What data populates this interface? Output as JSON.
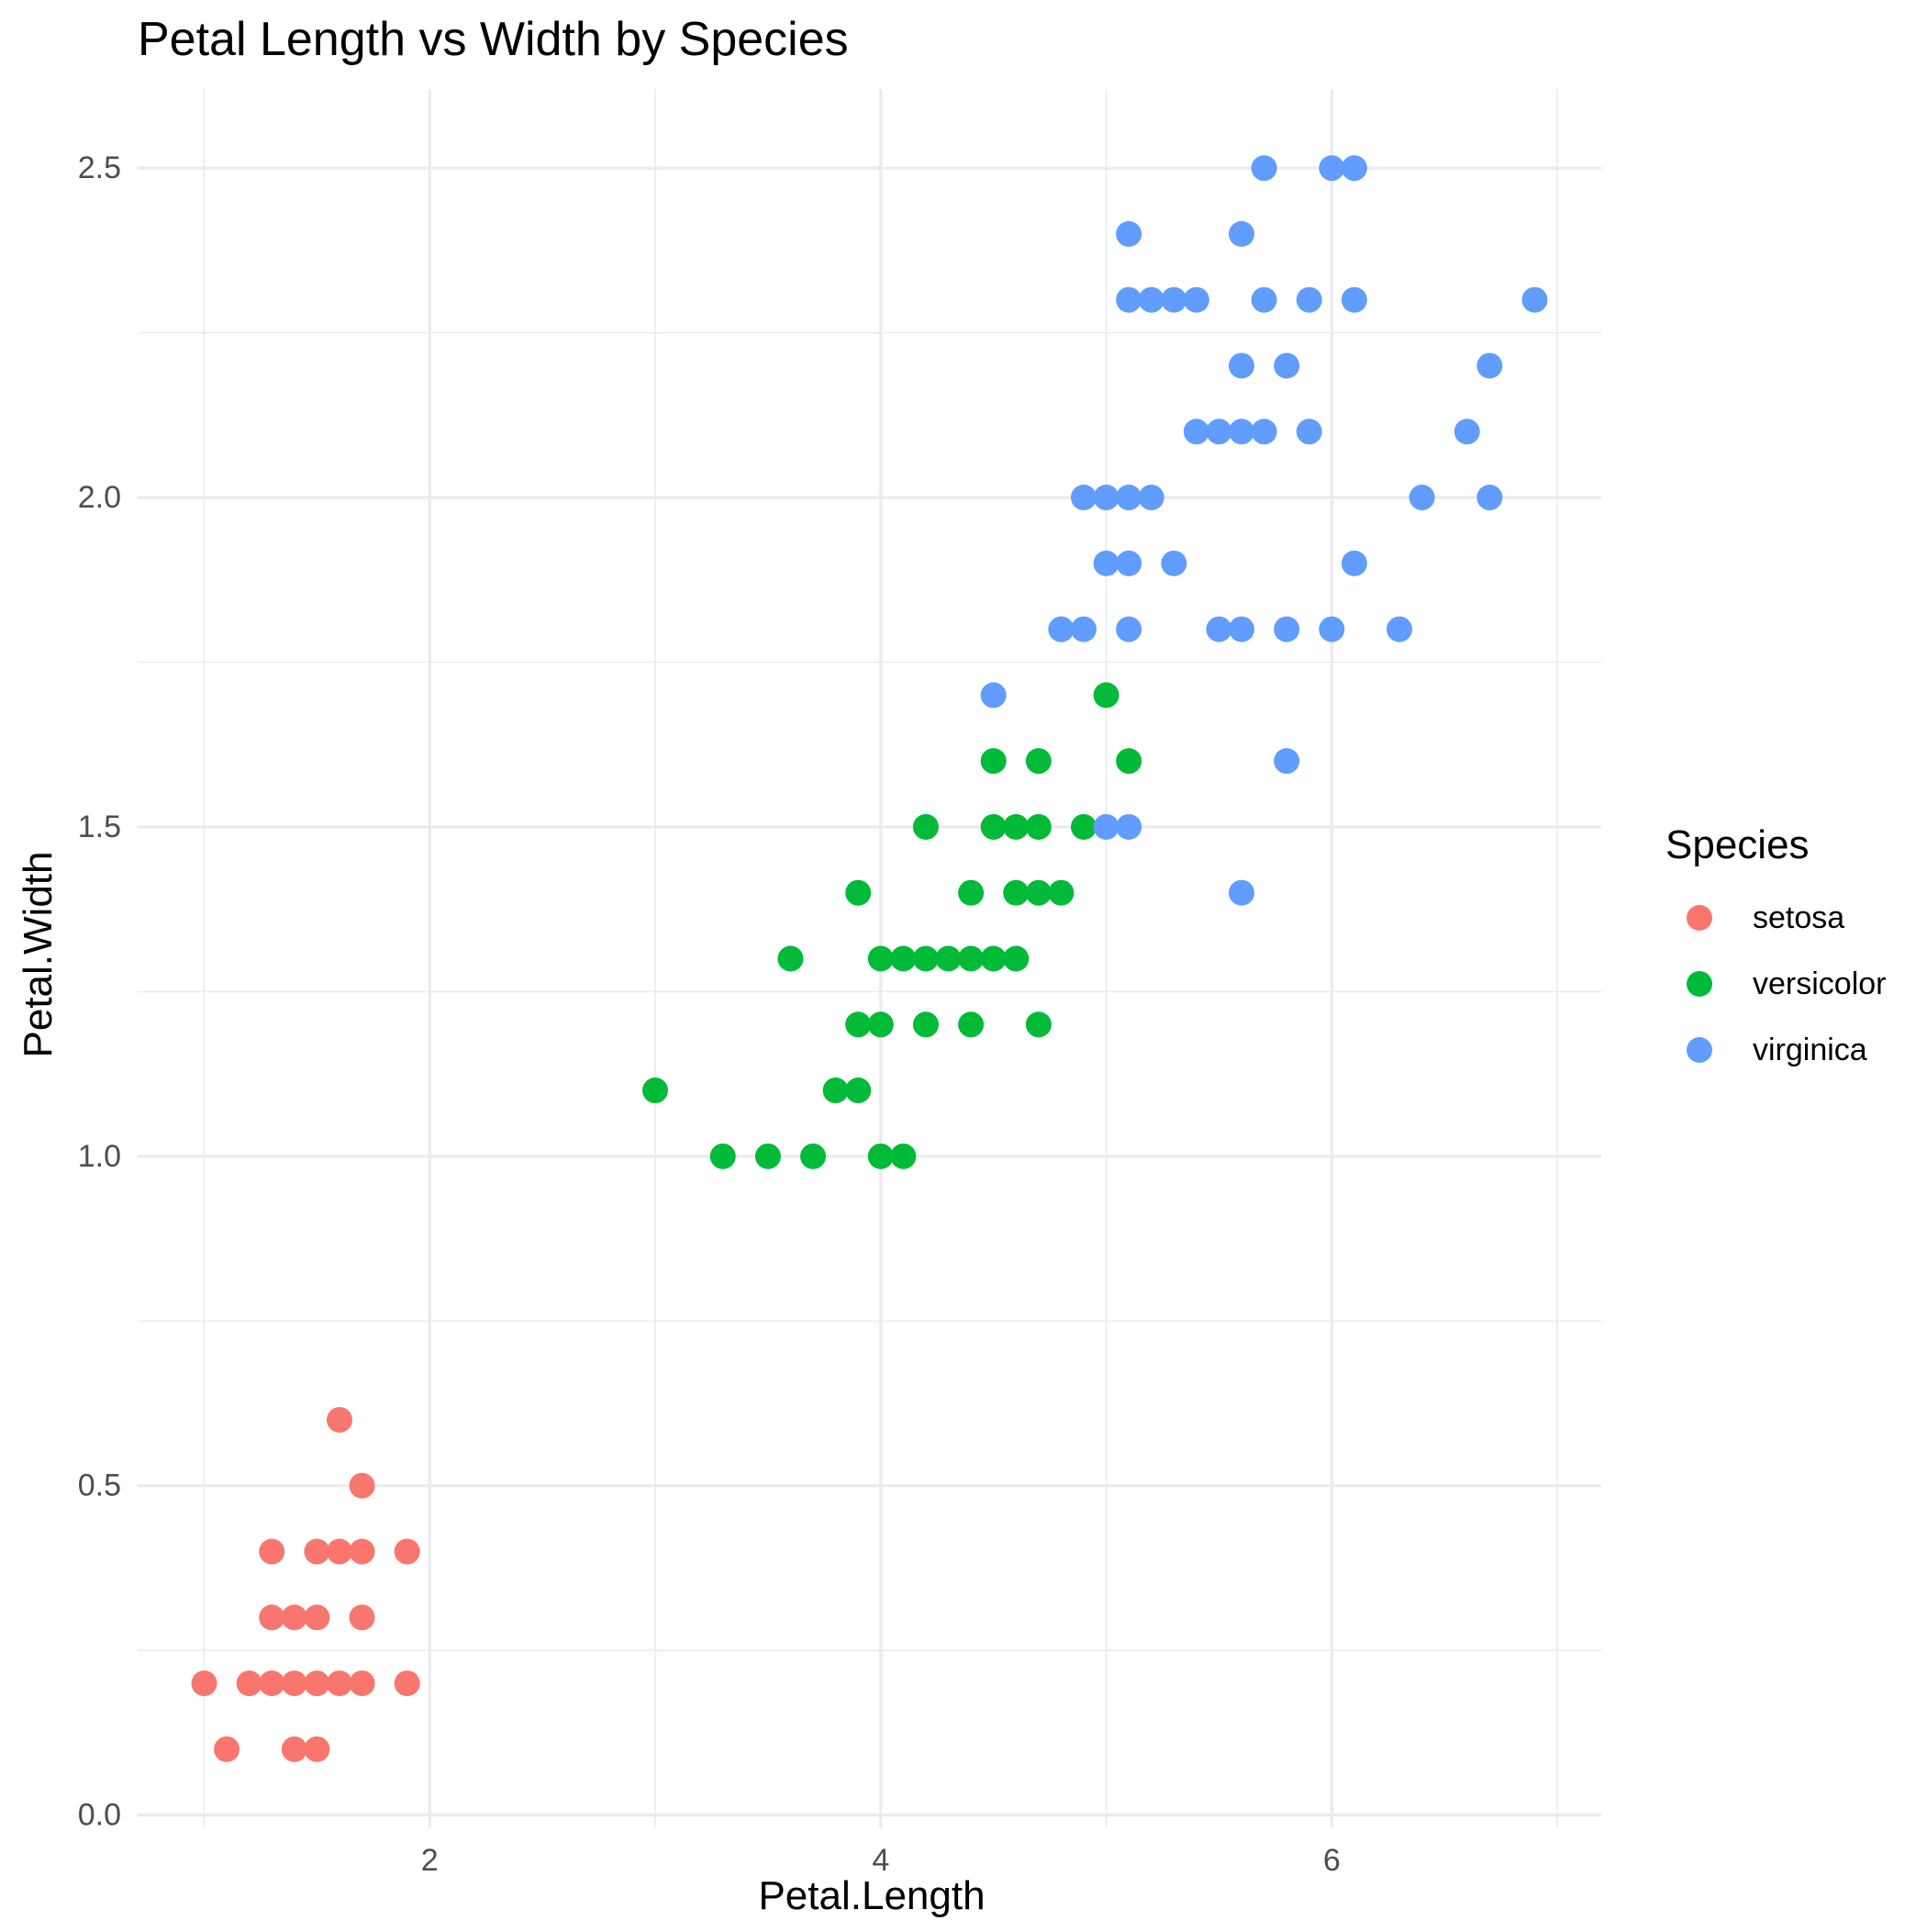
{
  "chart_data": {
    "type": "scatter",
    "title": "Petal Length vs Width by Species",
    "xlabel": "Petal.Length",
    "ylabel": "Petal.Width",
    "xlim": [
      0.705,
      7.195
    ],
    "ylim": [
      -0.02,
      2.62
    ],
    "x_ticks": [
      2,
      4,
      6
    ],
    "x_tick_labels": [
      "2",
      "4",
      "6"
    ],
    "x_minor_ticks": [
      1,
      3,
      5,
      7
    ],
    "y_ticks": [
      0.0,
      0.5,
      1.0,
      1.5,
      2.0,
      2.5
    ],
    "y_tick_labels": [
      "0.0",
      "0.5",
      "1.0",
      "1.5",
      "2.0",
      "2.5"
    ],
    "y_minor_ticks": [
      0.25,
      0.75,
      1.25,
      1.75,
      2.25
    ],
    "grid": true,
    "legend": {
      "title": "Species",
      "position": "right",
      "entries": [
        {
          "label": "setosa",
          "color": "#F8766D"
        },
        {
          "label": "versicolor",
          "color": "#00BA38"
        },
        {
          "label": "virginica",
          "color": "#619CFF"
        }
      ]
    },
    "series": [
      {
        "name": "setosa",
        "color": "#F8766D",
        "points": [
          [
            1.0,
            0.2
          ],
          [
            1.1,
            0.1
          ],
          [
            1.2,
            0.2
          ],
          [
            1.3,
            0.2
          ],
          [
            1.3,
            0.3
          ],
          [
            1.3,
            0.4
          ],
          [
            1.4,
            0.1
          ],
          [
            1.4,
            0.2
          ],
          [
            1.4,
            0.3
          ],
          [
            1.5,
            0.1
          ],
          [
            1.5,
            0.2
          ],
          [
            1.5,
            0.3
          ],
          [
            1.5,
            0.4
          ],
          [
            1.6,
            0.2
          ],
          [
            1.6,
            0.4
          ],
          [
            1.6,
            0.6
          ],
          [
            1.7,
            0.2
          ],
          [
            1.7,
            0.3
          ],
          [
            1.7,
            0.4
          ],
          [
            1.7,
            0.5
          ],
          [
            1.9,
            0.2
          ],
          [
            1.9,
            0.4
          ]
        ]
      },
      {
        "name": "versicolor",
        "color": "#00BA38",
        "points": [
          [
            3.0,
            1.1
          ],
          [
            3.3,
            1.0
          ],
          [
            3.5,
            1.0
          ],
          [
            3.6,
            1.3
          ],
          [
            3.7,
            1.0
          ],
          [
            3.8,
            1.1
          ],
          [
            3.9,
            1.1
          ],
          [
            3.9,
            1.2
          ],
          [
            3.9,
            1.4
          ],
          [
            4.0,
            1.0
          ],
          [
            4.0,
            1.2
          ],
          [
            4.0,
            1.3
          ],
          [
            4.1,
            1.0
          ],
          [
            4.1,
            1.3
          ],
          [
            4.2,
            1.2
          ],
          [
            4.2,
            1.3
          ],
          [
            4.2,
            1.5
          ],
          [
            4.3,
            1.3
          ],
          [
            4.4,
            1.2
          ],
          [
            4.4,
            1.3
          ],
          [
            4.4,
            1.4
          ],
          [
            4.5,
            1.3
          ],
          [
            4.5,
            1.5
          ],
          [
            4.5,
            1.6
          ],
          [
            4.6,
            1.3
          ],
          [
            4.6,
            1.4
          ],
          [
            4.6,
            1.5
          ],
          [
            4.7,
            1.2
          ],
          [
            4.7,
            1.4
          ],
          [
            4.7,
            1.5
          ],
          [
            4.7,
            1.6
          ],
          [
            4.8,
            1.4
          ],
          [
            4.8,
            1.8
          ],
          [
            4.9,
            1.5
          ],
          [
            5.0,
            1.7
          ],
          [
            5.1,
            1.6
          ]
        ]
      },
      {
        "name": "virginica",
        "color": "#619CFF",
        "points": [
          [
            4.5,
            1.7
          ],
          [
            4.8,
            1.8
          ],
          [
            4.9,
            1.8
          ],
          [
            4.9,
            2.0
          ],
          [
            5.0,
            1.5
          ],
          [
            5.0,
            1.9
          ],
          [
            5.0,
            2.0
          ],
          [
            5.1,
            1.5
          ],
          [
            5.1,
            1.8
          ],
          [
            5.1,
            1.9
          ],
          [
            5.1,
            2.0
          ],
          [
            5.1,
            2.3
          ],
          [
            5.1,
            2.4
          ],
          [
            5.2,
            2.0
          ],
          [
            5.2,
            2.3
          ],
          [
            5.3,
            1.9
          ],
          [
            5.3,
            2.3
          ],
          [
            5.4,
            2.1
          ],
          [
            5.4,
            2.3
          ],
          [
            5.5,
            1.8
          ],
          [
            5.5,
            2.1
          ],
          [
            5.6,
            1.4
          ],
          [
            5.6,
            1.8
          ],
          [
            5.6,
            2.1
          ],
          [
            5.6,
            2.2
          ],
          [
            5.6,
            2.4
          ],
          [
            5.7,
            2.1
          ],
          [
            5.7,
            2.3
          ],
          [
            5.7,
            2.5
          ],
          [
            5.8,
            1.6
          ],
          [
            5.8,
            1.8
          ],
          [
            5.8,
            2.2
          ],
          [
            5.9,
            2.1
          ],
          [
            5.9,
            2.3
          ],
          [
            6.0,
            1.8
          ],
          [
            6.0,
            2.5
          ],
          [
            6.1,
            1.9
          ],
          [
            6.1,
            2.3
          ],
          [
            6.1,
            2.5
          ],
          [
            6.3,
            1.8
          ],
          [
            6.4,
            2.0
          ],
          [
            6.6,
            2.1
          ],
          [
            6.7,
            2.0
          ],
          [
            6.7,
            2.2
          ],
          [
            6.9,
            2.3
          ]
        ]
      }
    ]
  }
}
